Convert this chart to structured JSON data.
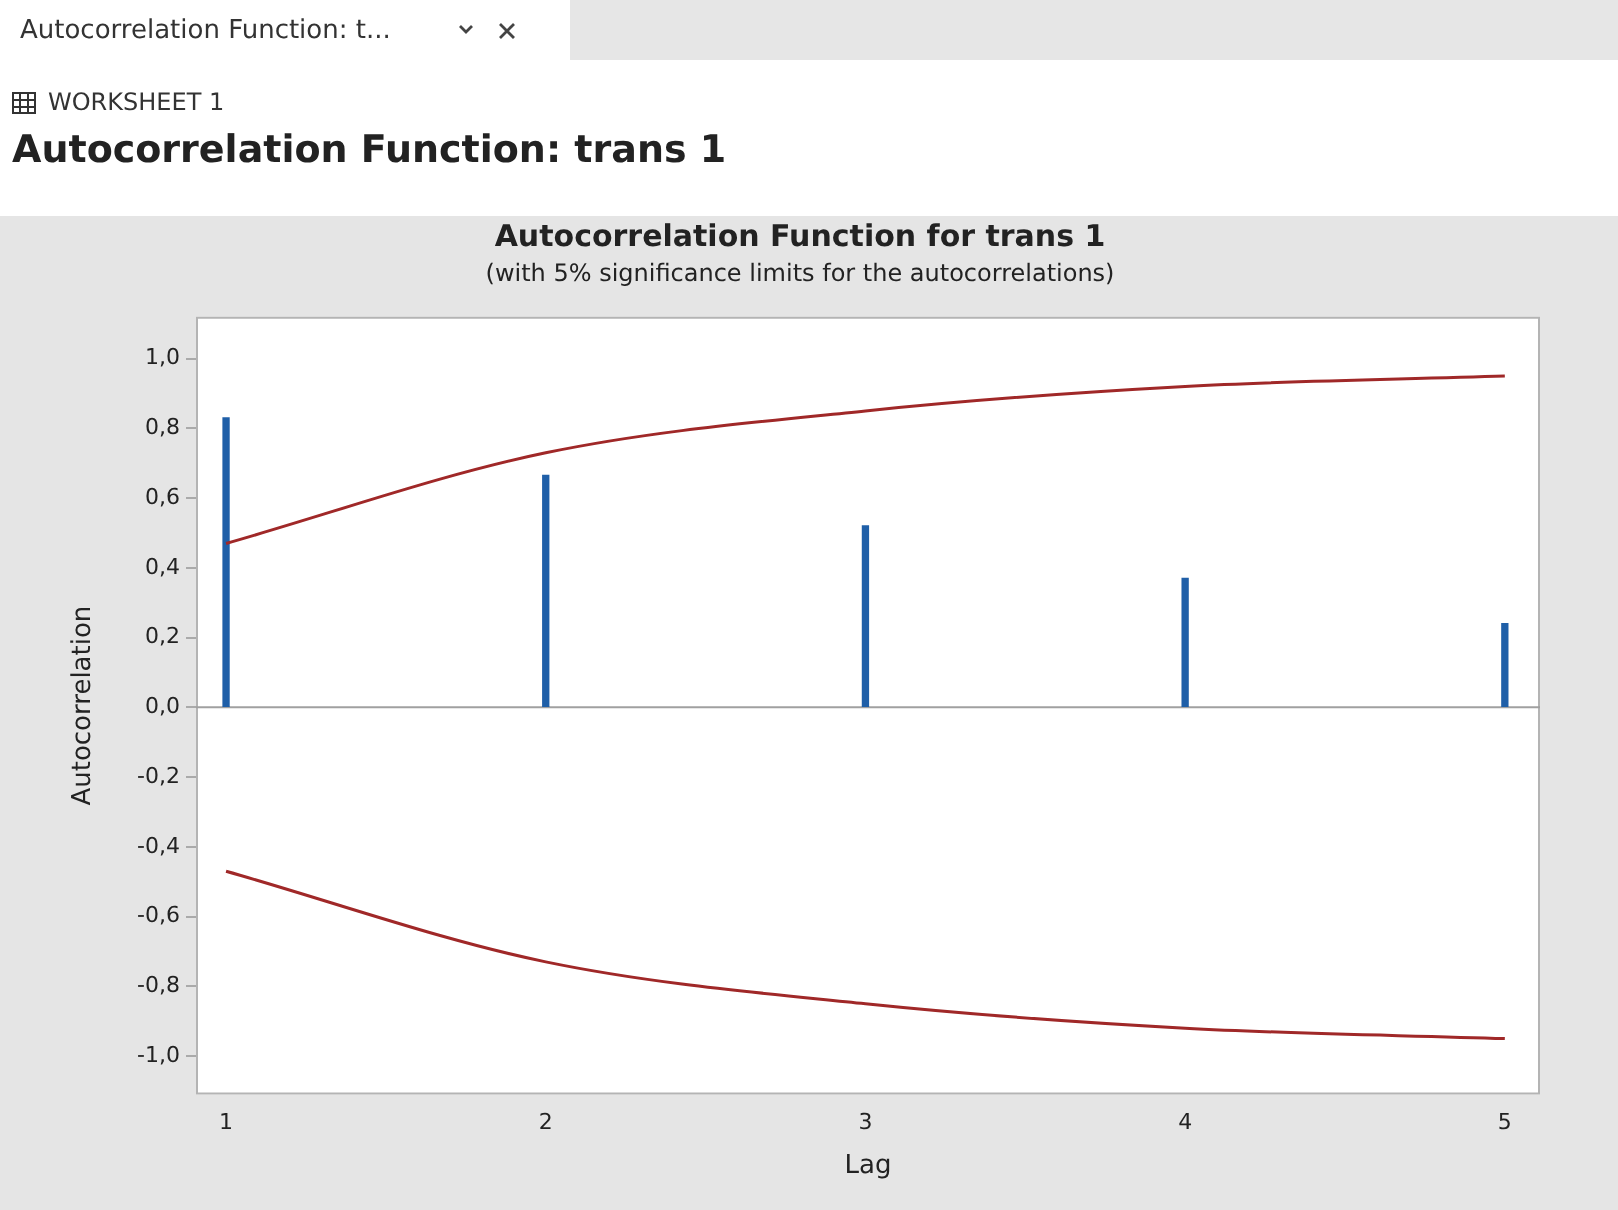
{
  "chart_data": {
    "type": "bar",
    "title": "Autocorrelation Function for trans 1",
    "subtitle": "(with 5% significance limits for the autocorrelations)",
    "xlabel": "Lag",
    "ylabel": "Autocorrelation",
    "annotations": [
      "Autocorrelation Function: t...",
      "WORKSHEET 1",
      "Autocorrelation Function: trans 1"
    ],
    "x": [
      1,
      2,
      3,
      4,
      5
    ],
    "series": [
      {
        "color": "#1f5fa8",
        "values": [
          0.83,
          0.665,
          0.52,
          0.37,
          0.24
        ]
      },
      {
        "type": "line",
        "color": "#a02828",
        "values": [
          0.47,
          0.73,
          0.85,
          0.92,
          0.95
        ]
      },
      {
        "type": "line",
        "color": "#a02828",
        "values": [
          -0.47,
          -0.73,
          -0.85,
          -0.92,
          -0.95
        ]
      }
    ],
    "xlim": [
      0.906,
      5.11
    ],
    "ylim": [
      -1.11,
      1.12
    ],
    "xticks": [
      1,
      2,
      3,
      4,
      5
    ],
    "yticks": [
      {
        "value": 1,
        "label": "1,0"
      },
      {
        "value": 0.8,
        "label": "0,8"
      },
      {
        "value": 0.6,
        "label": "0,6"
      },
      {
        "value": 0.4,
        "label": "0,4"
      },
      {
        "value": 0.2,
        "label": "0,2"
      },
      {
        "value": 0,
        "label": "0,0"
      },
      {
        "value": -0.2,
        "label": "-0,2"
      },
      {
        "value": -0.4,
        "label": "-0,4"
      },
      {
        "value": -0.6,
        "label": "-0,6"
      },
      {
        "value": -0.8,
        "label": "-0,8"
      },
      {
        "value": -1,
        "label": "-1,0"
      }
    ],
    "ref_lines": [
      {
        "axis": "y",
        "value": 0,
        "color": "#a0a0a0"
      }
    ],
    "marker": "none"
  }
}
